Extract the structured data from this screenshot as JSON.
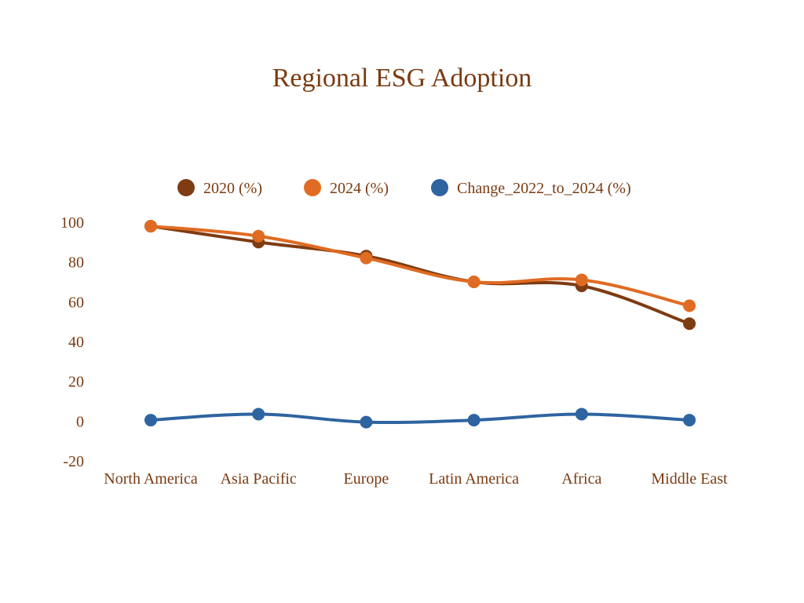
{
  "chart_data": {
    "type": "line",
    "title": "Regional ESG Adoption",
    "xlabel": "",
    "ylabel": "",
    "categories": [
      "North America",
      "Asia Pacific",
      "Europe",
      "Latin America",
      "Africa",
      "Middle East"
    ],
    "ylim": [
      -20,
      100
    ],
    "yticks": [
      100,
      80,
      60,
      40,
      20,
      0,
      -20
    ],
    "grid": false,
    "legend_position": "top-center",
    "series": [
      {
        "name": "2020 (%)",
        "color": "#7f3b12",
        "values": [
          98,
          90,
          83,
          70,
          68,
          49
        ]
      },
      {
        "name": "2024 (%)",
        "color": "#e06b22",
        "values": [
          98,
          93,
          82,
          70,
          71,
          58
        ]
      },
      {
        "name": "Change_2022_to_2024 (%)",
        "color": "#2e64a0",
        "values": [
          0.5,
          3.5,
          -0.5,
          0.5,
          3.5,
          0.5
        ]
      }
    ]
  }
}
